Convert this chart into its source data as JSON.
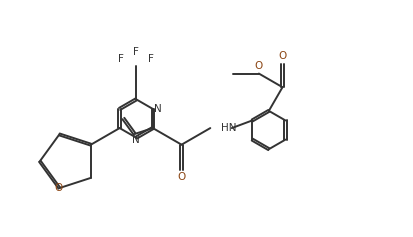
{
  "background_color": "#ffffff",
  "bond_color": "#333333",
  "atom_color": "#333333",
  "oxygen_color": "#8B4513",
  "line_width": 1.4,
  "figsize": [
    4.13,
    2.37
  ],
  "dpi": 100,
  "xlim": [
    0,
    10
  ],
  "ylim": [
    0,
    6
  ]
}
